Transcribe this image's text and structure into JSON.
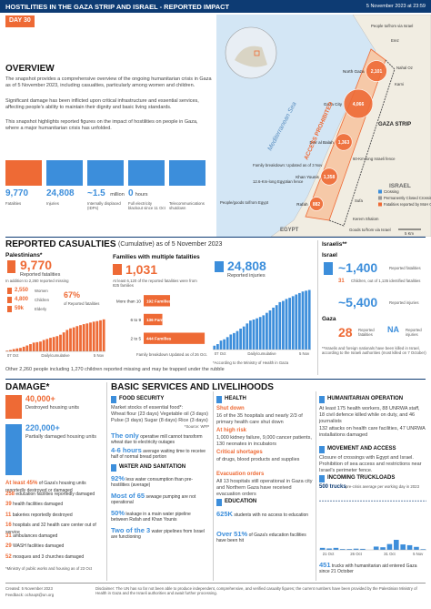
{
  "header": {
    "title": "HOSTILITIES IN THE GAZA STRIP AND ISRAEL - REPORTED IMPACT",
    "date": "5 November 2023 at 23:59",
    "day": "DAY 30"
  },
  "overview": {
    "heading": "OVERVIEW",
    "paragraphs": [
      "The snapshot provides a comprehensive overview of the ongoing humanitarian crisis in Gaza as of 5 November 2023, including casualties, particularly among women and children.",
      "Significant damage has been inflicted upon critical infrastructure and essential services, affecting people's ability to maintain their dignity and basic living standards.",
      "This snapshot highlights reported figures on the impact of hostilities on people in Gaza, where a major humanitarian crisis has unfolded."
    ]
  },
  "key_figures": [
    {
      "value": "9,770",
      "label": "Fatalities"
    },
    {
      "value": "24,808",
      "label": "Injuries"
    },
    {
      "value": "~1.5",
      "unit": "million",
      "label": "Internally displaced (IDPs)"
    },
    {
      "value": "0",
      "unit": "hours",
      "label": "Full electricity blackout since 11 Oct"
    },
    {
      "label": "Telecommunications shutdown"
    }
  ],
  "map": {
    "sea": "Mediterranean Sea",
    "access": "ACCESS PROHIBITED",
    "strip": "GAZA STRIP",
    "israel": "ISRAEL",
    "egypt": "EGYPT",
    "names": [
      "North Gaza",
      "Gaza City",
      "Deir al Balah",
      "Khan Younis",
      "Rafah"
    ],
    "fatalities": [
      2101,
      4066,
      1363,
      1358,
      882
    ],
    "value_labels": [
      "2,101",
      "4,066",
      "1,363",
      "1,358",
      "882"
    ],
    "annotations": [
      "People to/from via Israel",
      "Erez",
      "Nahal Oz",
      "Karni",
      "Sufa",
      "Kerem Shalom",
      "60-Km-long Israeli fence",
      "12.6-Km-long Egyptian fence",
      "People/goods to/from Egypt",
      "Goods to/from via Israel",
      "Family breakdown: Updated as of 3 Nov"
    ],
    "legend": [
      "Crossing",
      "Permanently Closed Crossing",
      "Fatalities reported by MoH Gaza"
    ],
    "scale": "5 Km"
  },
  "casualties": {
    "heading": "REPORTED CASUALTIES",
    "subtitle": "(Cumulative) as of 5 November 2023",
    "palestinians": {
      "heading": "Palestinians*",
      "fatalities": {
        "value": "9,770",
        "label": "Reported fatalities",
        "note": "In addition to 2,260 reported missing"
      },
      "breakdown": [
        {
          "value": "2,550",
          "label": "Women"
        },
        {
          "value": "4,800",
          "label": "Children"
        },
        {
          "value": "59k",
          "label": "Elderly"
        }
      ],
      "share": {
        "value": "67%",
        "label": "of Reported fatalities"
      },
      "chart": {
        "type": "bar",
        "color": "#ee6a35",
        "ylim": [
          0,
          10000
        ],
        "caption": "Daily/cumulative",
        "categories": [
          "07 Oct",
          null,
          null,
          null,
          null,
          null,
          null,
          null,
          null,
          null,
          null,
          null,
          null,
          null,
          null,
          null,
          null,
          null,
          null,
          null,
          null,
          null,
          null,
          null,
          null,
          null,
          null,
          null,
          null,
          "5 Nov"
        ],
        "values": [
          232,
          413,
          687,
          900,
          1055,
          1417,
          1799,
          2215,
          2670,
          2808,
          3000,
          3478,
          3785,
          4137,
          4385,
          4651,
          5087,
          5791,
          6546,
          7028,
          7326,
          7703,
          8005,
          8306,
          8525,
          8796,
          9061,
          9227,
          9488,
          9770
        ]
      },
      "families": {
        "heading": "Families with multiple fatalities",
        "value": "1,031",
        "note": "At least 6,120 of the reported fatalities were from 825 families",
        "chart": {
          "type": "bar",
          "orientation": "horizontal",
          "color": "#ee6a35",
          "xlim": [
            0,
            450
          ],
          "categories": [
            "More than 10",
            "6 to 9",
            "2 to 5"
          ],
          "values": [
            192,
            136,
            444
          ],
          "value_labels": [
            "192 Families",
            "136 Families",
            "444 Families"
          ]
        },
        "footnote": "Family breakdown Updated as of 26 Oct."
      },
      "injuries": {
        "value": "24,808",
        "label": "Reported injuries",
        "chart": {
          "type": "bar",
          "color": "#3c8edb",
          "ylim": [
            0,
            25000
          ],
          "caption": "Daily/cumulative",
          "categories": [
            "07 Oct",
            null,
            null,
            null,
            null,
            null,
            null,
            null,
            null,
            null,
            null,
            null,
            null,
            null,
            null,
            null,
            null,
            null,
            null,
            null,
            null,
            null,
            null,
            null,
            null,
            null,
            null,
            null,
            null,
            "5 Nov"
          ],
          "values": [
            1610,
            2271,
            3726,
            4250,
            5184,
            6268,
            6868,
            7696,
            8714,
            9600,
            10859,
            12065,
            12493,
            13000,
            13561,
            14245,
            15273,
            16297,
            17439,
            18484,
            19734,
            20242,
            21048,
            21543,
            22219,
            22911,
            23516,
            24158,
            24489,
            24808
          ]
        },
        "note": "*According to the Ministry of Health in Gaza"
      },
      "missing": "Other 2,260 people including 1,270 children reported missing and may be trapped under the rubble"
    },
    "israelis": {
      "heading": "Israelis**",
      "israel": "Israel",
      "fatalities": {
        "value": "~1,400",
        "label": "Reported fatalities"
      },
      "children": {
        "value": "31",
        "label": "Children, out of 1,135 identified fatalities"
      },
      "injuries": {
        "value": "~5,400",
        "label": "Reported injuries"
      },
      "gaza": "Gaza",
      "gaza_fatalities": {
        "value": "28",
        "label": "Reported fatalities"
      },
      "gaza_injuries": {
        "value": "NA",
        "label": "Reported injuries"
      },
      "note": "**Israelis and foreign nationals have been killed in Israel, according to the Israeli authorities (most killed on 7 October)"
    }
  },
  "damage": {
    "heading": "DAMAGE*",
    "destroyed": {
      "value": "40,000+",
      "label": "Destroyed housing units"
    },
    "damaged": {
      "value": "220,000+",
      "label": "Partially damaged housing units"
    },
    "items": [
      {
        "value": "At least 45%",
        "text": "of Gaza's housing units reportedly destroyed or damaged"
      },
      {
        "value": "258",
        "text": "education facilities reportedly damaged"
      },
      {
        "value": "39",
        "text": "health facilities damaged"
      },
      {
        "value": "11",
        "text": "bakeries reportedly destroyed"
      },
      {
        "value": "16",
        "text": "hospitals and 32 health care center out of service"
      },
      {
        "value": "31",
        "text": "ambulances damaged"
      },
      {
        "value": "29",
        "text": "WASH facilities damaged"
      },
      {
        "value": "52",
        "text": "mosques and 3 churches damaged"
      }
    ],
    "note": "*Ministry of public works and housing as of 23 Oct"
  },
  "services": {
    "heading": "BASIC SERVICES AND LIVELIHOODS",
    "food": {
      "heading": "FOOD SECURITY",
      "stocks_title": "Market stocks of essential food*:",
      "stocks": [
        "Wheat flour (23 days)",
        "Vegetable oil (3 days)",
        "Pulse (3 days)",
        "Sugar (8 days)",
        "Rice (3 days)"
      ],
      "source": "*Source: WFP",
      "stats": [
        {
          "value": "The only",
          "text": "operative mill cannot transform wheat due to electricity outages"
        },
        {
          "value": "4-6 hours",
          "text": "average waiting time to receive half of normal bread portion"
        }
      ]
    },
    "water": {
      "heading": "WATER AND SANITATION",
      "stats": [
        {
          "value": "92%",
          "text": "less water consumption than pre-hostilities (average)"
        },
        {
          "value": "Most of 65",
          "text": "sewage pumping are not operational"
        },
        {
          "value": "50%",
          "text": "leakage in a main water pipeline between Rafah and Khan Younis"
        },
        {
          "value": "Two of the 3",
          "text": "water pipelines from Israel are functioning"
        }
      ]
    },
    "health": {
      "heading": "HEALTH",
      "items": [
        {
          "title": "Shut down",
          "text": "16 of the 35 hospitals and nearly 2/3 of primary health care shut down"
        },
        {
          "title": "At high risk",
          "text": "1,000 kidney failure, 9,000 cancer patients, 130 neonates in incubators"
        },
        {
          "title": "Critical shortages",
          "text": "of drugs, blood products and supplies"
        },
        {
          "title": "Evacuation orders",
          "text": "All 13 hospitals still operational in Gaza city and Northern Gaza have received evacuation orders"
        }
      ]
    },
    "education": {
      "heading": "EDUCATION",
      "stats": [
        {
          "value": "625K",
          "text": "students with no access to education"
        },
        {
          "value": "Over 51%",
          "text": "of Gaza's education facilities have been hit"
        }
      ]
    },
    "humanitarian": {
      "heading": "HUMANITARIAN OPERATION",
      "texts": [
        "At least 175 health workers, 88 UNRWA staff, 18 civil defence killed while on duty, and 46 journalists",
        "132 attacks on health care facilities, 47 UNRWA installations damaged"
      ]
    },
    "movement": {
      "heading": "MOVEMENT AND ACCESS",
      "text": "Closure of crossings with Egypt and Israel. Prohibition of sea access and restrictions near Israel's perimeter fence."
    },
    "truckloads": {
      "heading": "INCOMING TRUCKLOADS",
      "chart": {
        "type": "bar",
        "color": "#3c8edb",
        "ylim": [
          0,
          520
        ],
        "categories": [
          "21 Oct",
          null,
          null,
          null,
          null,
          "26 Oct",
          null,
          null,
          null,
          null,
          "31 Oct",
          null,
          null,
          null,
          null,
          "5 Nov"
        ],
        "values": [
          20,
          14,
          20,
          8,
          8,
          12,
          10,
          0,
          33,
          26,
          59,
          102,
          55,
          47,
          30,
          7
        ],
        "reference": {
          "value": 500,
          "label": "500 trucks",
          "note": "pre-crisis average per working day in 2023"
        }
      },
      "total": {
        "value": "451",
        "text": "trucks with humanitarian aid entered Gaza since 21 October"
      }
    }
  },
  "footer": {
    "created": "Created: 5 November 2023",
    "feedback": "Feedback: ochaopt@un.org",
    "disclaimer": "Disclaimer: The UN has so far not been able to produce independent, comprehensive, and verified casualty figures; the current numbers have been provided by the Palestinian Ministry of Health in Gaza and the Israeli authorities and await further processing."
  }
}
